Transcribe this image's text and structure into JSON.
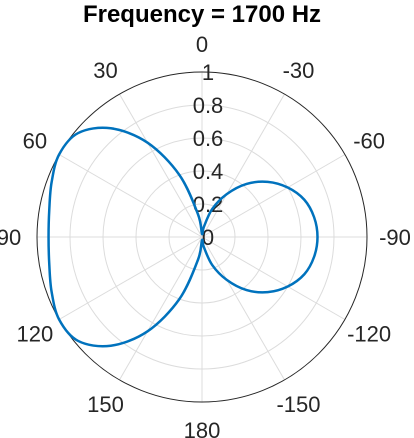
{
  "chart_data": {
    "type": "polar-line",
    "title": "Frequency = 1700 Hz",
    "theta_zero": "top",
    "theta_direction": "counterclockwise",
    "theta_ticks": [
      "0",
      "30",
      "60",
      "90",
      "120",
      "150",
      "180",
      "-150",
      "-120",
      "-90",
      "-60",
      "-30"
    ],
    "theta_tick_values": [
      0,
      30,
      60,
      90,
      120,
      150,
      180,
      -150,
      -120,
      -90,
      -60,
      -30
    ],
    "r_ticks": [
      "0",
      "0.2",
      "0.4",
      "0.6",
      "0.8",
      "1"
    ],
    "r_tick_values": [
      0,
      0.2,
      0.4,
      0.6,
      0.8,
      1
    ],
    "rlim": [
      0,
      1
    ],
    "grid": true,
    "series": [
      {
        "color": "#0072BD",
        "theta": [
          0,
          10,
          20,
          30,
          40,
          50,
          60,
          70,
          80,
          90,
          100,
          110,
          120,
          130,
          140,
          150,
          160,
          170,
          180,
          -170,
          -160,
          -150,
          -140,
          -130,
          -120,
          -110,
          -100,
          -90,
          -80,
          -70,
          -60,
          -50,
          -40,
          -30,
          -20,
          -10,
          0
        ],
        "r": [
          0.02,
          0.14,
          0.4,
          0.66,
          0.86,
          0.98,
          1.0,
          0.97,
          0.94,
          0.93,
          0.94,
          0.97,
          1.0,
          0.98,
          0.86,
          0.66,
          0.4,
          0.14,
          0.02,
          0.06,
          0.18,
          0.3,
          0.42,
          0.52,
          0.6,
          0.66,
          0.69,
          0.7,
          0.69,
          0.66,
          0.6,
          0.52,
          0.42,
          0.3,
          0.18,
          0.06,
          0.02
        ]
      }
    ]
  }
}
